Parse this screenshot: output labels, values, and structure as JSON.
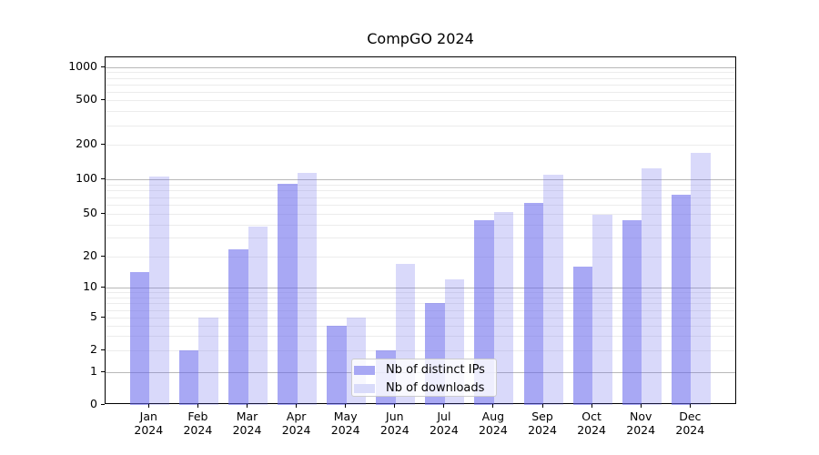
{
  "title": "CompGO 2024",
  "legend": {
    "items": [
      {
        "label": "Nb of distinct IPs",
        "color": "#a8a8f4"
      },
      {
        "label": "Nb of downloads",
        "color": "#d9dbfa"
      }
    ]
  },
  "colors": {
    "bar_base": "#6666ec",
    "dark_bar_effective": "#a8a8f4",
    "light_bar_effective": "#d9dbfa",
    "major_gridline": "#b8b8b8",
    "minor_gridline": "#ececec",
    "axis": "#000000"
  },
  "y_axis": {
    "tick_labels": [
      "0",
      "1",
      "2",
      "5",
      "10",
      "20",
      "50",
      "100",
      "200",
      "500",
      "1000"
    ]
  },
  "x_axis": {
    "year": "2024",
    "months": [
      "Jan",
      "Feb",
      "Mar",
      "Apr",
      "May",
      "Jun",
      "Jul",
      "Aug",
      "Sep",
      "Oct",
      "Nov",
      "Dec"
    ]
  },
  "chart_data": {
    "type": "bar",
    "title": "CompGO 2024",
    "categories": [
      "Jan 2024",
      "Feb 2024",
      "Mar 2024",
      "Apr 2024",
      "May 2024",
      "Jun 2024",
      "Jul 2024",
      "Aug 2024",
      "Sep 2024",
      "Oct 2024",
      "Nov 2024",
      "Dec 2024"
    ],
    "series": [
      {
        "name": "Nb of distinct IPs",
        "color": "#a8a8f4",
        "values": [
          14,
          2,
          23,
          92,
          4,
          2,
          7,
          44,
          63,
          16,
          44,
          74
        ]
      },
      {
        "name": "Nb of downloads",
        "color": "#d9dbfa",
        "values": [
          105,
          5,
          38,
          113,
          5,
          17,
          12,
          52,
          110,
          49,
          125,
          170
        ]
      }
    ],
    "yscale": "symlog",
    "yticks": [
      0,
      1,
      2,
      5,
      10,
      20,
      50,
      100,
      200,
      500,
      1000
    ],
    "ylim": [
      0,
      1000
    ],
    "grid": true,
    "grid_major_at": [
      1,
      10,
      100,
      1000
    ],
    "legend_position": "lower center"
  }
}
